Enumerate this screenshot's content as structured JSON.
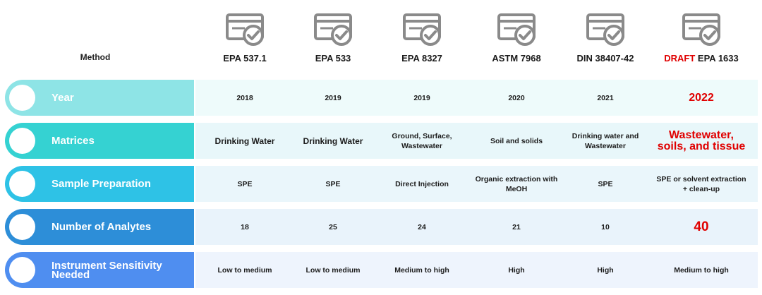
{
  "header": {
    "method_label": "Method",
    "columns": [
      {
        "name": "EPA 537.1",
        "icon": "certificate-check-icon"
      },
      {
        "name": "EPA 533",
        "icon": "certificate-check-icon"
      },
      {
        "name": "EPA 8327",
        "icon": "certificate-check-icon"
      },
      {
        "name": "ASTM 7968",
        "icon": "certificate-check-icon"
      },
      {
        "name": "DIN 38407-42",
        "icon": "certificate-check-icon"
      },
      {
        "prefix": "DRAFT",
        "name": "EPA 1633",
        "icon": "certificate-check-icon"
      }
    ]
  },
  "rows": [
    {
      "label": "Year",
      "values": [
        "2018",
        "2019",
        "2019",
        "2020",
        "2021",
        "2022"
      ]
    },
    {
      "label": "Matrices",
      "values": [
        "Drinking Water",
        "Drinking Water",
        "Ground, Surface, Wastewater",
        "Soil and solids",
        "Drinking water and Wastewater",
        "Wastewater, soils, and tissue"
      ]
    },
    {
      "label": "Sample Preparation",
      "values": [
        "SPE",
        "SPE",
        "Direct Injection",
        "Organic extraction with MeOH",
        "SPE",
        "SPE or solvent extraction + clean-up"
      ]
    },
    {
      "label": "Number of Analytes",
      "values": [
        "18",
        "25",
        "24",
        "21",
        "10",
        "40"
      ]
    },
    {
      "label": "Instrument Sensitivity Needed",
      "values": [
        "Low to medium",
        "Low to medium",
        "Medium to high",
        "High",
        "High",
        "Medium to high"
      ]
    }
  ],
  "colors": {
    "row_pills": [
      "#8ee4e6",
      "#35d2d2",
      "#2ec2e6",
      "#2d8ed8",
      "#4f8ef0"
    ],
    "row_bands": [
      "#eefbfb",
      "#e8f7fa",
      "#eaf6fb",
      "#e9f3fb",
      "#eef4fd"
    ],
    "icon": "#8a8a8a",
    "accent_red": "#e00000"
  }
}
